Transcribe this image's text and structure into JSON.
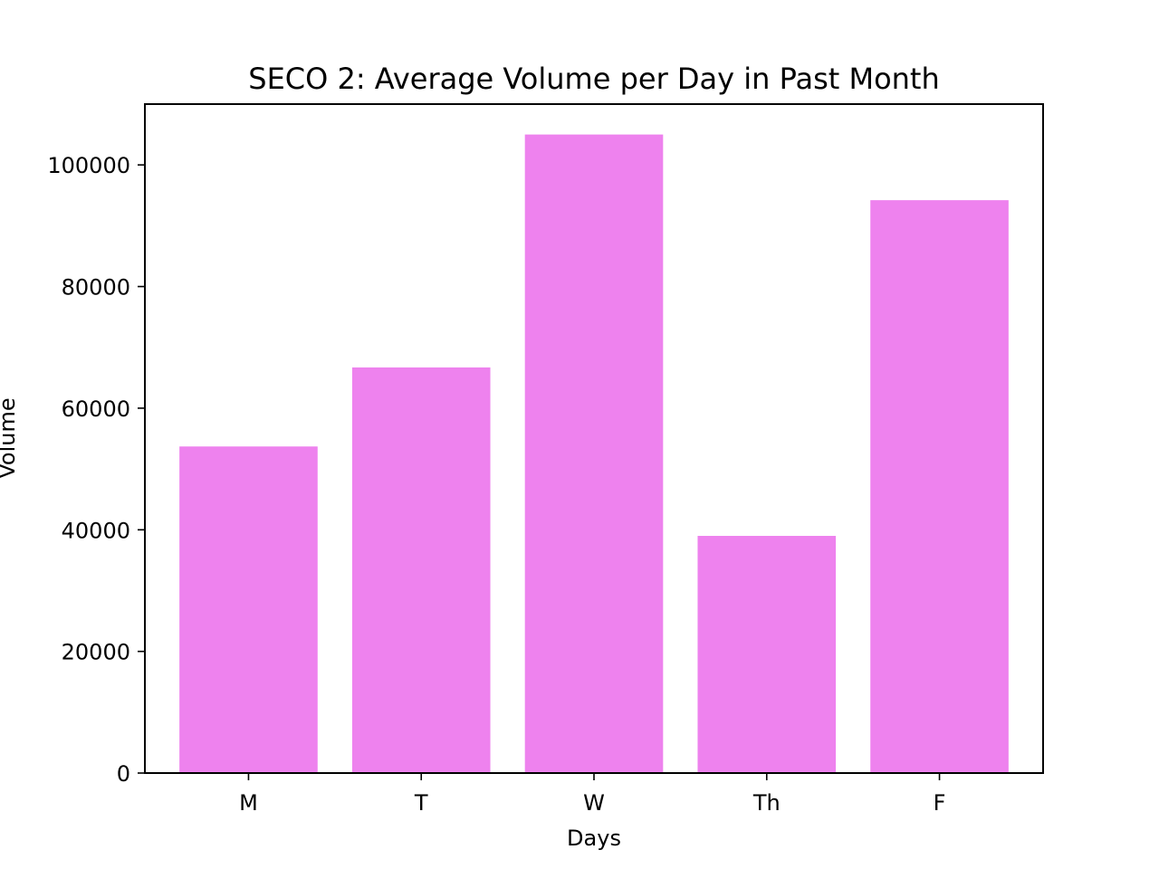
{
  "chart_data": {
    "type": "bar",
    "title": "SECO 2: Average Volume per Day in Past Month",
    "xlabel": "Days",
    "ylabel": "Volume",
    "categories": [
      "M",
      "T",
      "W",
      "Th",
      "F"
    ],
    "values": [
      53700,
      66700,
      105000,
      39000,
      94200
    ],
    "ylim": [
      0,
      110000
    ],
    "yticks": [
      0,
      20000,
      40000,
      60000,
      80000,
      100000
    ],
    "grid": false,
    "bar_color": "#ee82ee"
  }
}
